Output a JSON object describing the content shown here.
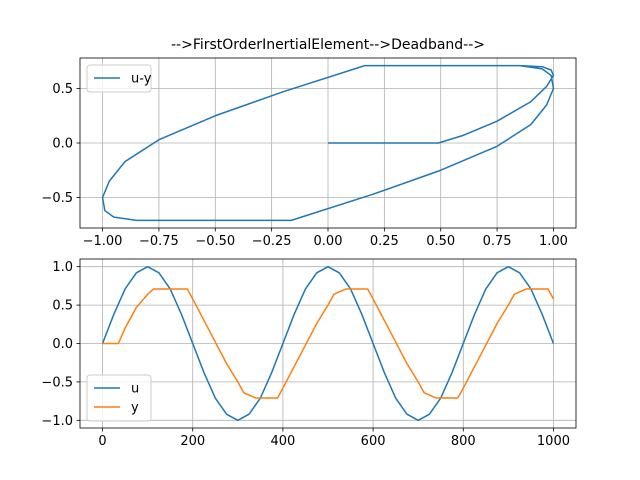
{
  "figure": {
    "title": "-->FirstOrderInertialElement-->Deadband-->"
  },
  "colors": {
    "u": "#1f77b4",
    "y": "#ff7f0e",
    "grid": "#b0b0b0",
    "axes": "#000000",
    "legend_border": "#cccccc"
  },
  "chart_data": [
    {
      "type": "line",
      "title": "-->FirstOrderInertialElement-->Deadband-->",
      "xlabel": "",
      "ylabel": "",
      "xlim": [
        -1.1,
        1.1
      ],
      "ylim": [
        -0.78,
        0.78
      ],
      "x_ticks": [
        -1.0,
        -0.75,
        -0.5,
        -0.25,
        0.0,
        0.25,
        0.5,
        0.75,
        1.0
      ],
      "x_tick_labels": [
        "−1.00",
        "−0.75",
        "−0.50",
        "−0.25",
        "0.00",
        "0.25",
        "0.50",
        "0.75",
        "1.00"
      ],
      "y_ticks": [
        -0.5,
        0.0,
        0.5
      ],
      "y_tick_labels": [
        "−0.5",
        "0.0",
        "0.5"
      ],
      "grid": true,
      "legend_position": "upper-left",
      "series": [
        {
          "name": "u-y",
          "color": "#1f77b4",
          "description_points": "phase plot of u vs y",
          "x": [
            0.0,
            0.49,
            0.6,
            0.75,
            0.9,
            0.97,
            1.0,
            0.99,
            0.95,
            0.85,
            0.7,
            0.5,
            0.3,
            0.163,
            -0.2,
            -0.5,
            -0.75,
            -0.9,
            -0.97,
            -1.0,
            -0.99,
            -0.95,
            -0.85,
            -0.7,
            -0.5,
            -0.3,
            -0.163,
            0.2,
            0.5,
            0.75,
            0.9,
            0.97,
            1.0,
            0.99,
            0.95,
            0.85,
            0.7,
            0.5,
            0.3,
            0.163,
            -0.2,
            -0.5,
            -0.75,
            -0.9,
            -0.97,
            -1.0,
            -0.99,
            -0.95,
            -0.85,
            -0.7,
            -0.5,
            -0.3,
            -0.163,
            0.2,
            0.5,
            0.75,
            0.9,
            0.97,
            1.0
          ],
          "y": [
            0.0,
            0.0,
            0.07,
            0.2,
            0.38,
            0.52,
            0.62,
            0.67,
            0.7,
            0.71,
            0.71,
            0.71,
            0.71,
            0.71,
            0.47,
            0.25,
            0.03,
            -0.17,
            -0.35,
            -0.5,
            -0.62,
            -0.68,
            -0.71,
            -0.71,
            -0.71,
            -0.71,
            -0.71,
            -0.47,
            -0.25,
            -0.03,
            0.17,
            0.35,
            0.5,
            0.62,
            0.68,
            0.71,
            0.71,
            0.71,
            0.71,
            0.71,
            0.47,
            0.25,
            0.03,
            -0.17,
            -0.35,
            -0.5,
            -0.62,
            -0.68,
            -0.71,
            -0.71,
            -0.71,
            -0.71,
            -0.71,
            -0.47,
            -0.25,
            -0.03,
            0.17,
            0.35,
            0.5
          ]
        }
      ]
    },
    {
      "type": "line",
      "title": "",
      "xlabel": "",
      "ylabel": "",
      "xlim": [
        -50,
        1050
      ],
      "ylim": [
        -1.1,
        1.1
      ],
      "x_ticks": [
        0,
        200,
        400,
        600,
        800,
        1000
      ],
      "x_tick_labels": [
        "0",
        "200",
        "400",
        "600",
        "800",
        "1000"
      ],
      "y_ticks": [
        -1.0,
        -0.5,
        0.0,
        0.5,
        1.0
      ],
      "y_tick_labels": [
        "−1.0",
        "−0.5",
        "0.0",
        "0.5",
        "1.0"
      ],
      "grid": true,
      "legend_position": "lower-left",
      "series": [
        {
          "name": "u",
          "color": "#1f77b4",
          "x": [
            0,
            25,
            50,
            75,
            100,
            125,
            150,
            175,
            200,
            225,
            250,
            275,
            300,
            325,
            350,
            375,
            400,
            425,
            450,
            475,
            500,
            525,
            550,
            575,
            600,
            625,
            650,
            675,
            700,
            725,
            750,
            775,
            800,
            825,
            850,
            875,
            900,
            925,
            950,
            975,
            1000
          ],
          "y": [
            0.0,
            0.38,
            0.71,
            0.92,
            1.0,
            0.92,
            0.71,
            0.38,
            0.0,
            -0.38,
            -0.71,
            -0.92,
            -1.0,
            -0.92,
            -0.71,
            -0.38,
            0.0,
            0.38,
            0.71,
            0.92,
            1.0,
            0.92,
            0.71,
            0.38,
            0.0,
            -0.38,
            -0.71,
            -0.92,
            -1.0,
            -0.92,
            -0.71,
            -0.38,
            0.0,
            0.38,
            0.71,
            0.92,
            1.0,
            0.92,
            0.71,
            0.38,
            0.0
          ]
        },
        {
          "name": "y",
          "color": "#ff7f0e",
          "x": [
            0,
            35,
            50,
            75,
            100,
            113,
            140,
            188,
            200,
            225,
            250,
            275,
            300,
            313,
            340,
            388,
            400,
            425,
            450,
            475,
            500,
            513,
            540,
            588,
            600,
            625,
            650,
            675,
            700,
            713,
            740,
            788,
            800,
            825,
            850,
            875,
            900,
            913,
            940,
            988,
            1000
          ],
          "y": [
            0.0,
            0.0,
            0.2,
            0.47,
            0.64,
            0.71,
            0.71,
            0.71,
            0.58,
            0.3,
            0.02,
            -0.26,
            -0.5,
            -0.64,
            -0.71,
            -0.71,
            -0.58,
            -0.3,
            -0.02,
            0.26,
            0.5,
            0.64,
            0.71,
            0.71,
            0.58,
            0.3,
            0.02,
            -0.26,
            -0.5,
            -0.64,
            -0.71,
            -0.71,
            -0.58,
            -0.3,
            -0.02,
            0.26,
            0.5,
            0.64,
            0.71,
            0.71,
            0.58
          ]
        }
      ]
    }
  ]
}
